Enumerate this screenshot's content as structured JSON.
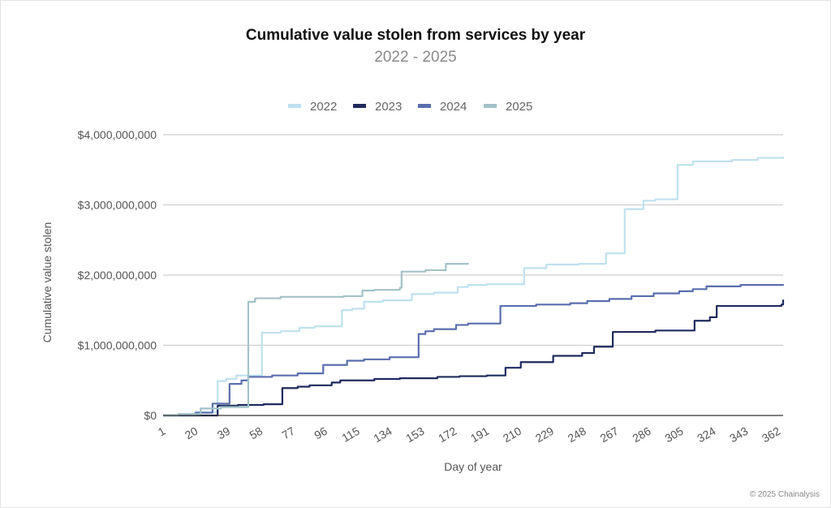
{
  "chart_data": {
    "type": "line",
    "title": "Cumulative value stolen from services by year",
    "subtitle": "2022 - 2025",
    "xlabel": "Day of year",
    "ylabel": "Cumulative value stolen",
    "xlim": [
      1,
      365
    ],
    "ylim": [
      0,
      4000000000
    ],
    "x_ticks": [
      1,
      20,
      39,
      58,
      77,
      96,
      115,
      134,
      153,
      172,
      191,
      210,
      229,
      248,
      267,
      286,
      305,
      324,
      343,
      362
    ],
    "y_ticks": [
      0,
      1000000000,
      2000000000,
      3000000000,
      4000000000
    ],
    "y_tick_labels": [
      "$0",
      "$1,000,000,000",
      "$2,000,000,000",
      "$3,000,000,000",
      "$4,000,000,000"
    ],
    "grid": "horizontal",
    "legend_position": "top",
    "step": true,
    "series": [
      {
        "name": "2022",
        "color": "#bfe1ef",
        "points": [
          [
            1,
            0
          ],
          [
            10,
            20000000.0
          ],
          [
            20,
            50000000.0
          ],
          [
            33,
            490000000.0
          ],
          [
            38,
            520000000.0
          ],
          [
            44,
            570000000.0
          ],
          [
            59,
            1180000000.0
          ],
          [
            70,
            1200000000.0
          ],
          [
            81,
            1250000000.0
          ],
          [
            90,
            1270000000.0
          ],
          [
            106,
            1500000000.0
          ],
          [
            112,
            1520000000.0
          ],
          [
            119,
            1620000000.0
          ],
          [
            130,
            1640000000.0
          ],
          [
            147,
            1730000000.0
          ],
          [
            160,
            1750000000.0
          ],
          [
            174,
            1830000000.0
          ],
          [
            180,
            1860000000.0
          ],
          [
            191,
            1870000000.0
          ],
          [
            213,
            2100000000.0
          ],
          [
            226,
            2150000000.0
          ],
          [
            245,
            2160000000.0
          ],
          [
            261,
            2310000000.0
          ],
          [
            272,
            2940000000.0
          ],
          [
            283,
            3060000000.0
          ],
          [
            290,
            3080000000.0
          ],
          [
            303,
            3570000000.0
          ],
          [
            312,
            3620000000.0
          ],
          [
            335,
            3640000000.0
          ],
          [
            350,
            3670000000.0
          ],
          [
            365,
            3690000000.0
          ]
        ]
      },
      {
        "name": "2023",
        "color": "#1f2b5e",
        "points": [
          [
            1,
            0
          ],
          [
            33,
            140000000.0
          ],
          [
            45,
            150000000.0
          ],
          [
            60,
            160000000.0
          ],
          [
            71,
            390000000.0
          ],
          [
            80,
            410000000.0
          ],
          [
            87,
            430000000.0
          ],
          [
            100,
            470000000.0
          ],
          [
            105,
            500000000.0
          ],
          [
            125,
            520000000.0
          ],
          [
            140,
            530000000.0
          ],
          [
            162,
            550000000.0
          ],
          [
            175,
            560000000.0
          ],
          [
            191,
            570000000.0
          ],
          [
            202,
            680000000.0
          ],
          [
            211,
            760000000.0
          ],
          [
            230,
            850000000.0
          ],
          [
            247,
            890000000.0
          ],
          [
            254,
            980000000.0
          ],
          [
            265,
            1190000000.0
          ],
          [
            290,
            1210000000.0
          ],
          [
            313,
            1350000000.0
          ],
          [
            322,
            1400000000.0
          ],
          [
            326,
            1560000000.0
          ],
          [
            364,
            1580000000.0
          ],
          [
            365,
            1650000000.0
          ]
        ]
      },
      {
        "name": "2024",
        "color": "#5a6eae",
        "points": [
          [
            1,
            0
          ],
          [
            20,
            40000000.0
          ],
          [
            30,
            170000000.0
          ],
          [
            40,
            450000000.0
          ],
          [
            47,
            500000000.0
          ],
          [
            51,
            550000000.0
          ],
          [
            65,
            570000000.0
          ],
          [
            80,
            600000000.0
          ],
          [
            95,
            720000000.0
          ],
          [
            109,
            780000000.0
          ],
          [
            119,
            800000000.0
          ],
          [
            134,
            830000000.0
          ],
          [
            151,
            1160000000.0
          ],
          [
            155,
            1200000000.0
          ],
          [
            160,
            1230000000.0
          ],
          [
            173,
            1290000000.0
          ],
          [
            180,
            1310000000.0
          ],
          [
            199,
            1560000000.0
          ],
          [
            220,
            1580000000.0
          ],
          [
            240,
            1600000000.0
          ],
          [
            250,
            1630000000.0
          ],
          [
            263,
            1660000000.0
          ],
          [
            276,
            1700000000.0
          ],
          [
            289,
            1740000000.0
          ],
          [
            304,
            1770000000.0
          ],
          [
            312,
            1800000000.0
          ],
          [
            320,
            1840000000.0
          ],
          [
            340,
            1860000000.0
          ],
          [
            365,
            1870000000.0
          ]
        ]
      },
      {
        "name": "2025",
        "color": "#a3c2c8",
        "points": [
          [
            1,
            0
          ],
          [
            10,
            20000000.0
          ],
          [
            23,
            100000000.0
          ],
          [
            35,
            120000000.0
          ],
          [
            51,
            1620000000.0
          ],
          [
            55,
            1670000000.0
          ],
          [
            70,
            1690000000.0
          ],
          [
            107,
            1700000000.0
          ],
          [
            118,
            1780000000.0
          ],
          [
            125,
            1790000000.0
          ],
          [
            140,
            1820000000.0
          ],
          [
            141,
            2050000000.0
          ],
          [
            155,
            2070000000.0
          ],
          [
            167,
            2160000000.0
          ],
          [
            180,
            2170000000.0
          ]
        ]
      }
    ]
  },
  "footer": {
    "copyright": "© 2025 Chainalysis"
  }
}
